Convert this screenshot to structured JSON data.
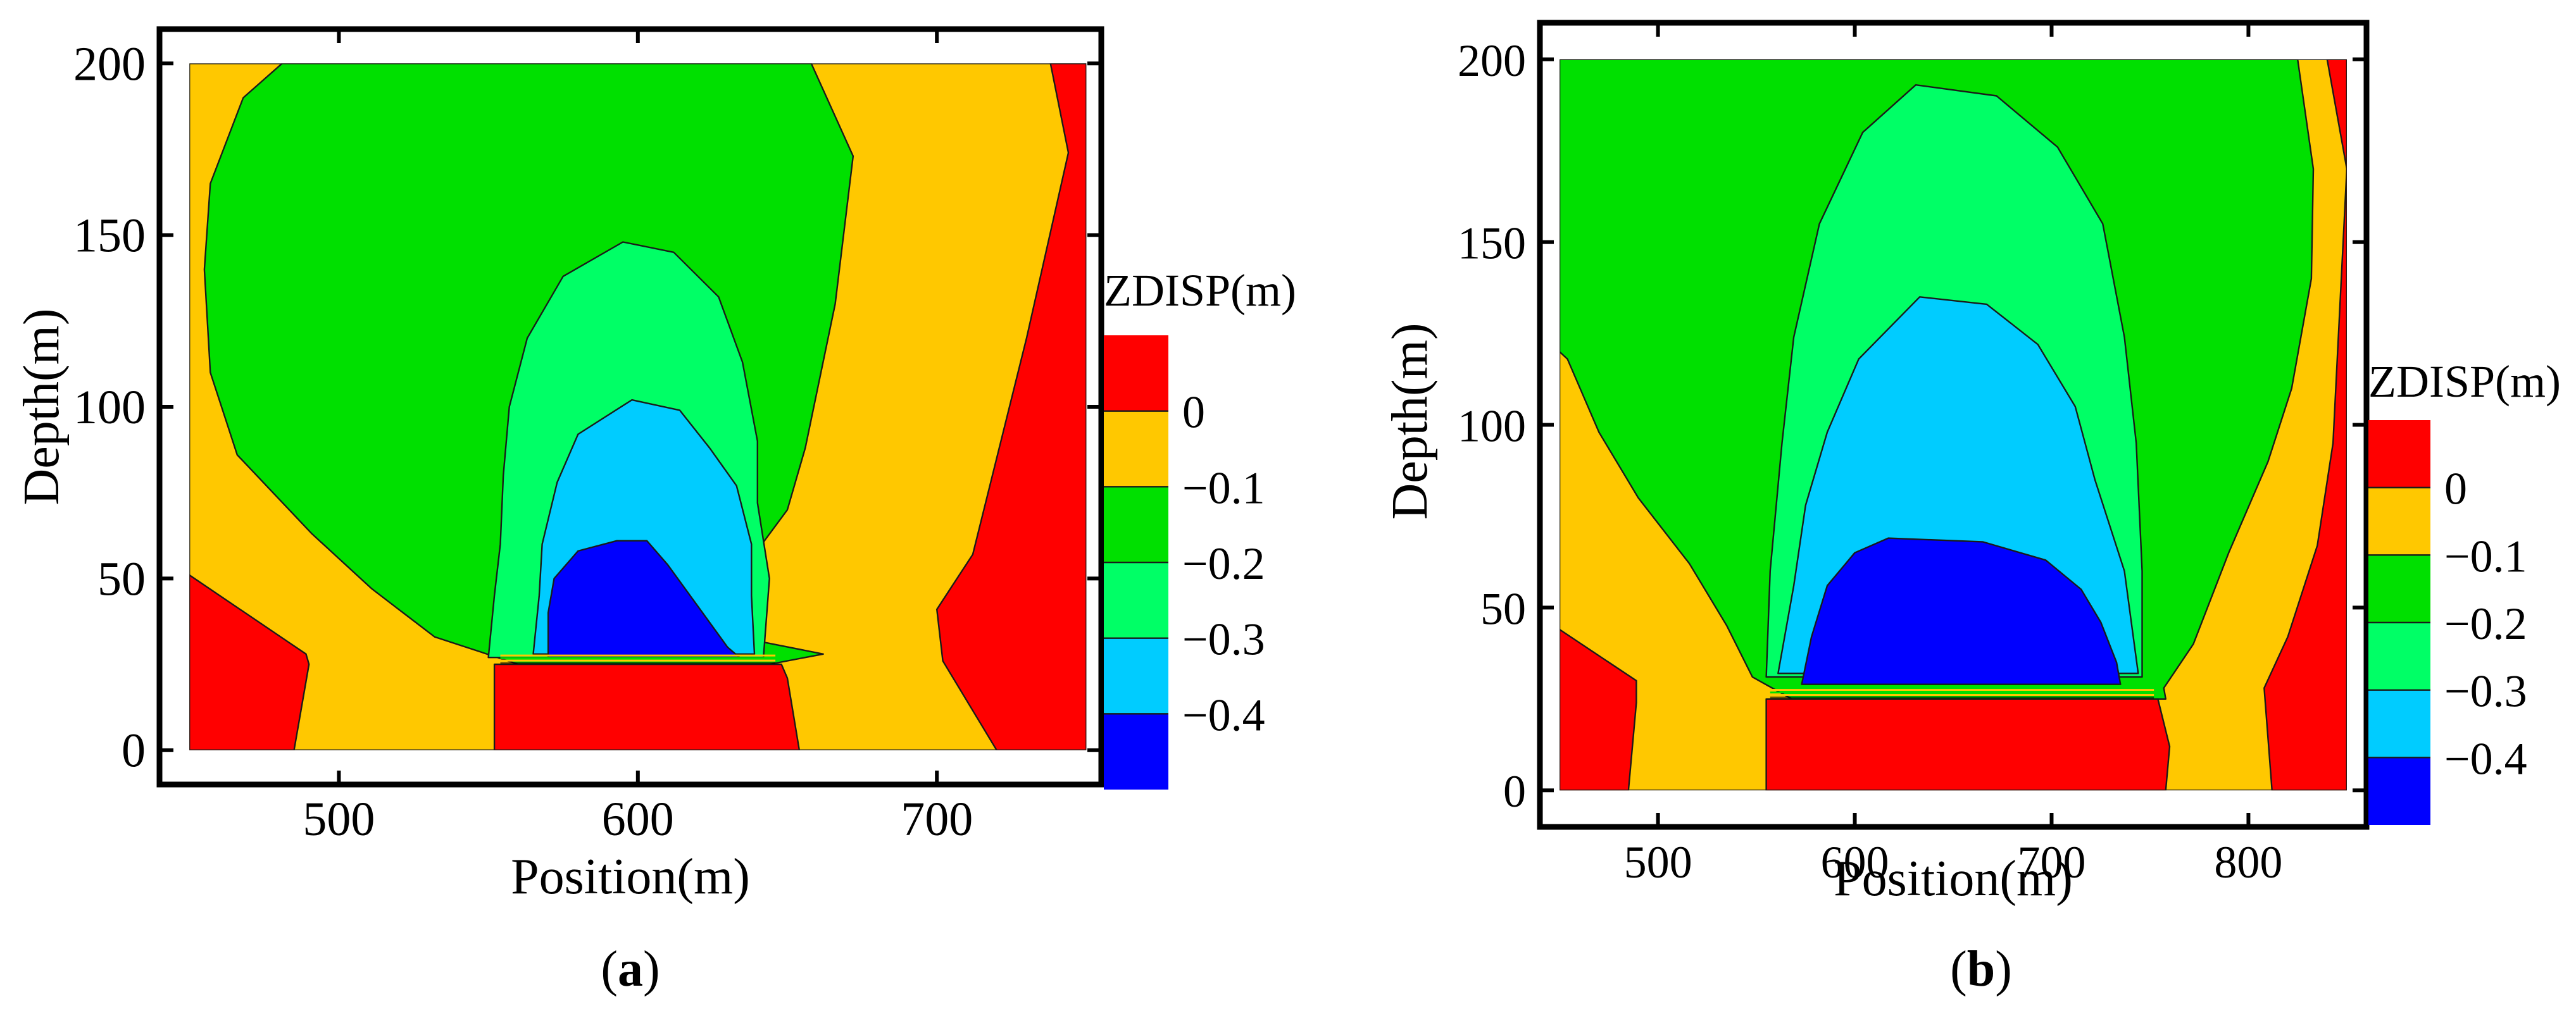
{
  "chart_data": [
    {
      "type": "heatmap",
      "subtype": "contour",
      "panel_label": "a",
      "xlabel": "Position(m)",
      "ylabel": "Depth(m)",
      "xticks": [
        500,
        600,
        700
      ],
      "yticks": [
        0,
        50,
        100,
        150,
        200
      ],
      "xlim": [
        440,
        755
      ],
      "ylim": [
        -10,
        210
      ],
      "domain": {
        "x": [
          450,
          750
        ],
        "y": [
          0,
          200
        ]
      },
      "legend": {
        "title": "ZDISP(m)",
        "labels": [
          "0",
          "−0.1",
          "−0.2",
          "−0.3",
          "−0.4"
        ],
        "levels": [
          0.05,
          0,
          -0.1,
          -0.2,
          -0.3,
          -0.4,
          -0.45
        ],
        "colors": [
          "#ff0000",
          "#ffc800",
          "#00e000",
          "#00ff66",
          "#00ccff",
          "#0000ff"
        ]
      },
      "zones": [
        {
          "level": 0,
          "color": "#ffc800",
          "poly": [
            [
              450,
              200
            ],
            [
              750,
              200
            ],
            [
              750,
              0
            ],
            [
              450,
              0
            ]
          ]
        },
        {
          "level": -0.1,
          "color": "#00e000",
          "poly": [
            [
              481,
              200
            ],
            [
              658,
              200
            ],
            [
              672,
              173
            ],
            [
              666,
              130
            ],
            [
              656,
              88
            ],
            [
              650,
              70
            ],
            [
              633,
              50
            ],
            [
              633,
              33
            ],
            [
              662,
              28
            ],
            [
              644,
              25
            ],
            [
              560,
              25
            ],
            [
              532,
              33
            ],
            [
              511,
              47
            ],
            [
              491,
              63
            ],
            [
              466,
              86
            ],
            [
              457,
              110
            ],
            [
              455,
              140
            ],
            [
              457,
              165
            ],
            [
              468,
              190
            ]
          ]
        },
        {
          "level": -0.2,
          "color": "#00ff66",
          "poly": [
            [
              595,
              148
            ],
            [
              612,
              145
            ],
            [
              627,
              132
            ],
            [
              635,
              113
            ],
            [
              640,
              90
            ],
            [
              640,
              72
            ],
            [
              644,
              50
            ],
            [
              642,
              27
            ],
            [
              550,
              27
            ],
            [
              552,
              45
            ],
            [
              554,
              60
            ],
            [
              555,
              80
            ],
            [
              557,
              100
            ],
            [
              563,
              120
            ],
            [
              575,
              138
            ]
          ]
        },
        {
          "level": -0.3,
          "color": "#00ccff",
          "poly": [
            [
              598,
              102
            ],
            [
              614,
              99
            ],
            [
              624,
              88
            ],
            [
              633,
              77
            ],
            [
              638,
              60
            ],
            [
              638,
              45
            ],
            [
              639,
              28
            ],
            [
              565,
              28
            ],
            [
              567,
              45
            ],
            [
              568,
              60
            ],
            [
              573,
              78
            ],
            [
              580,
              92
            ]
          ]
        },
        {
          "level": -0.4,
          "color": "#0000ff",
          "poly": [
            [
              593,
              61
            ],
            [
              603,
              61
            ],
            [
              610,
              54
            ],
            [
              620,
              42
            ],
            [
              630,
              30
            ],
            [
              634,
              27
            ],
            [
              570,
              27
            ],
            [
              570,
              40
            ],
            [
              572,
              50
            ],
            [
              580,
              58
            ]
          ]
        },
        {
          "level": 0.05,
          "color": "#ff0000",
          "poly": [
            [
              450,
              51
            ],
            [
              450,
              0
            ],
            [
              485,
              0
            ],
            [
              490,
              25
            ],
            [
              489,
              28
            ]
          ]
        },
        {
          "level": 0.05,
          "color": "#ff0000",
          "poly": [
            [
              552,
              25
            ],
            [
              648,
              25
            ],
            [
              650,
              21
            ],
            [
              654,
              0
            ],
            [
              552,
              0
            ]
          ]
        },
        {
          "level": 0.05,
          "color": "#ff0000",
          "poly": [
            [
              750,
              200
            ],
            [
              750,
              0
            ],
            [
              720,
              0
            ],
            [
              702,
              26
            ],
            [
              700,
              41
            ],
            [
              712,
              57
            ],
            [
              730,
              120
            ],
            [
              744,
              174
            ],
            [
              738,
              200
            ]
          ]
        }
      ]
    },
    {
      "type": "heatmap",
      "subtype": "contour",
      "panel_label": "b",
      "xlabel": "Position(m)",
      "ylabel": "Depth(m)",
      "xticks": [
        500,
        600,
        700,
        800
      ],
      "yticks": [
        0,
        50,
        100,
        150,
        200
      ],
      "xlim": [
        440,
        860
      ],
      "ylim": [
        -10,
        210
      ],
      "domain": {
        "x": [
          450,
          850
        ],
        "y": [
          0,
          200
        ]
      },
      "legend": {
        "title": "ZDISP(m)",
        "labels": [
          "0",
          "−0.1",
          "−0.2",
          "−0.3",
          "−0.4"
        ],
        "levels": [
          0.05,
          0,
          -0.1,
          -0.2,
          -0.3,
          -0.4,
          -0.45
        ],
        "colors": [
          "#ff0000",
          "#ffc800",
          "#00e000",
          "#00ff66",
          "#00ccff",
          "#0000ff"
        ]
      },
      "zones": [
        {
          "level": 0,
          "color": "#ffc800",
          "poly": [
            [
              450,
              200
            ],
            [
              850,
              200
            ],
            [
              850,
              0
            ],
            [
              450,
              0
            ]
          ]
        },
        {
          "level": -0.1,
          "color": "#00e000",
          "poly": [
            [
              450,
              200
            ],
            [
              825,
              200
            ],
            [
              833,
              170
            ],
            [
              832,
              140
            ],
            [
              822,
              110
            ],
            [
              810,
              90
            ],
            [
              790,
              65
            ],
            [
              772,
              40
            ],
            [
              757,
              28
            ],
            [
              758,
              25
            ],
            [
              568,
              25
            ],
            [
              548,
              31
            ],
            [
              535,
              45
            ],
            [
              516,
              62
            ],
            [
              490,
              80
            ],
            [
              470,
              98
            ],
            [
              454,
              118
            ],
            [
              450,
              120
            ]
          ]
        },
        {
          "level": -0.2,
          "color": "#00ff66",
          "poly": [
            [
              631,
              193
            ],
            [
              672,
              190
            ],
            [
              703,
              176
            ],
            [
              726,
              155
            ],
            [
              737,
              124
            ],
            [
              743,
              95
            ],
            [
              746,
              60
            ],
            [
              746,
              31
            ],
            [
              555,
              31
            ],
            [
              557,
              60
            ],
            [
              563,
              95
            ],
            [
              569,
              124
            ],
            [
              582,
              155
            ],
            [
              604,
              180
            ]
          ]
        },
        {
          "level": -0.3,
          "color": "#00ccff",
          "poly": [
            [
              633,
              135
            ],
            [
              667,
              133
            ],
            [
              693,
              122
            ],
            [
              712,
              105
            ],
            [
              722,
              85
            ],
            [
              737,
              60
            ],
            [
              744,
              32
            ],
            [
              561,
              32
            ],
            [
              569,
              56
            ],
            [
              575,
              78
            ],
            [
              586,
              98
            ],
            [
              602,
              118
            ]
          ]
        },
        {
          "level": -0.4,
          "color": "#0000ff",
          "poly": [
            [
              617,
              69
            ],
            [
              665,
              68
            ],
            [
              697,
              63
            ],
            [
              715,
              55
            ],
            [
              725,
              46
            ],
            [
              733,
              35
            ],
            [
              735,
              29
            ],
            [
              573,
              29
            ],
            [
              578,
              42
            ],
            [
              586,
              56
            ],
            [
              600,
              65
            ]
          ]
        },
        {
          "level": 0.05,
          "color": "#ff0000",
          "poly": [
            [
              450,
              44
            ],
            [
              450,
              0
            ],
            [
              485,
              0
            ],
            [
              489,
              24
            ],
            [
              489,
              30
            ]
          ]
        },
        {
          "level": 0.05,
          "color": "#ff0000",
          "poly": [
            [
              555,
              25
            ],
            [
              754,
              25
            ],
            [
              760,
              12
            ],
            [
              758,
              0
            ],
            [
              555,
              0
            ]
          ]
        },
        {
          "level": 0.05,
          "color": "#ff0000",
          "poly": [
            [
              850,
              200
            ],
            [
              850,
              0
            ],
            [
              812,
              0
            ],
            [
              808,
              28
            ],
            [
              820,
              42
            ],
            [
              835,
              67
            ],
            [
              843,
              95
            ],
            [
              850,
              170
            ],
            [
              840,
              200
            ]
          ]
        }
      ]
    }
  ]
}
